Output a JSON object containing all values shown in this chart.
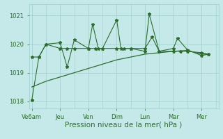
{
  "background_color": "#c5e8e8",
  "grid_color": "#9ecece",
  "line_color": "#2d6e2d",
  "marker_color": "#2d6e2d",
  "xlabel": "Pression niveau de la mer( hPa )",
  "xlabel_color": "#2d6e2d",
  "xlabel_fontsize": 7.5,
  "tick_color": "#2d6e2d",
  "ylim": [
    1017.75,
    1021.4
  ],
  "yticks": [
    1018,
    1019,
    1020,
    1021
  ],
  "xtick_labels": [
    "Ve6am",
    "Jeu",
    "Ven",
    "Dim",
    "Lun",
    "Mar",
    "Mer"
  ],
  "xtick_positions": [
    0,
    2,
    4,
    6,
    8,
    10,
    12
  ],
  "xlim": [
    -0.2,
    13.2
  ],
  "series_spiky_x": [
    0,
    0.5,
    1.0,
    2.0,
    2.5,
    3.0,
    4.0,
    4.3,
    4.7,
    5.0,
    6.0,
    6.3,
    7.0,
    8.0,
    8.3,
    9.0,
    10.0,
    10.3,
    11.0,
    12.0,
    12.5
  ],
  "series_spiky_y": [
    1018.05,
    1019.55,
    1020.0,
    1020.05,
    1019.2,
    1020.15,
    1019.85,
    1020.7,
    1019.85,
    1019.85,
    1020.85,
    1019.85,
    1019.85,
    1019.75,
    1021.05,
    1019.75,
    1019.85,
    1020.2,
    1019.8,
    1019.6,
    1019.65
  ],
  "series_mid_x": [
    0,
    0.5,
    1.0,
    2.0,
    2.5,
    3.0,
    4.0,
    4.5,
    5.0,
    6.0,
    6.5,
    7.0,
    8.0,
    8.5,
    9.0,
    10.0,
    10.5,
    11.0,
    12.0,
    12.5
  ],
  "series_mid_y": [
    1019.55,
    1019.55,
    1020.0,
    1019.85,
    1019.85,
    1019.85,
    1019.85,
    1019.85,
    1019.85,
    1019.85,
    1019.85,
    1019.85,
    1019.85,
    1020.25,
    1019.75,
    1019.75,
    1019.75,
    1019.75,
    1019.7,
    1019.65
  ],
  "series_smooth_x": [
    0,
    1,
    2,
    3,
    4,
    5,
    6,
    7,
    8,
    9,
    10,
    11,
    12,
    12.5
  ],
  "series_smooth_y": [
    1018.5,
    1018.7,
    1018.85,
    1019.0,
    1019.15,
    1019.3,
    1019.45,
    1019.55,
    1019.65,
    1019.7,
    1019.75,
    1019.78,
    1019.65,
    1019.65
  ]
}
